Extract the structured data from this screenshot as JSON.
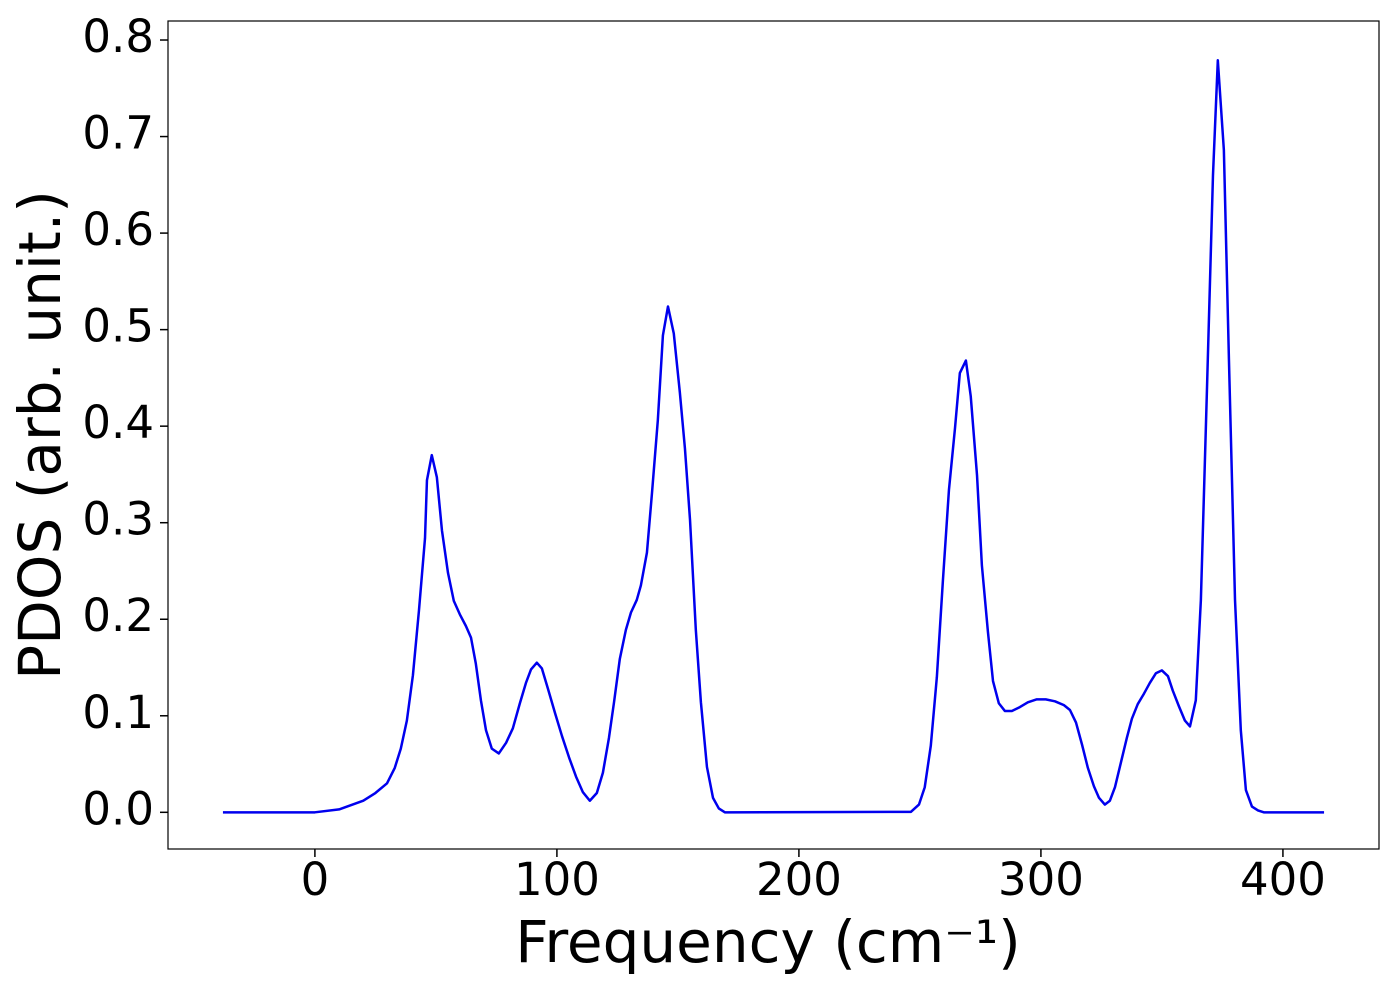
{
  "chart_data": {
    "type": "line",
    "x_label": "Frequency (cm⁻¹)",
    "y_label": "PDOS (arb. unit.)",
    "color": "#0000ee",
    "x": [
      -38,
      0,
      10,
      20,
      25,
      29.8,
      33,
      35.5,
      38,
      40.5,
      43,
      45.5,
      46.3,
      48.3,
      50.4,
      52.5,
      55,
      57.4,
      59.9,
      62.4,
      64.5,
      66.5,
      68.6,
      70.7,
      73.1,
      76,
      79,
      81.8,
      84.7,
      87.2,
      89.3,
      91.7,
      93.8,
      96.3,
      99.2,
      102.1,
      105,
      107.9,
      110.7,
      113.6,
      116.5,
      119,
      121.5,
      123.6,
      126,
      128.5,
      130.6,
      133,
      134.7,
      137.2,
      139.3,
      141.7,
      143.8,
      145.9,
      148.3,
      150.8,
      152.9,
      155,
      157.4,
      159.5,
      162,
      164.5,
      166.9,
      169.4,
      246.3,
      249.6,
      252,
      254.5,
      257,
      259.5,
      262,
      264.5,
      266.5,
      269,
      271,
      273.6,
      275.6,
      278.1,
      280.2,
      282.6,
      285.1,
      288,
      291.3,
      294.6,
      298.3,
      302,
      305.8,
      309.5,
      312,
      314.5,
      317,
      319.4,
      321.9,
      324,
      326.4,
      328.5,
      330.6,
      333,
      335.5,
      337.6,
      340,
      342.6,
      345,
      347.5,
      350,
      352.5,
      354.5,
      357,
      359.5,
      361.6,
      364,
      366.1,
      368.6,
      371.1,
      373.1,
      375.6,
      377.7,
      380.2,
      382.6,
      384.7,
      387.2,
      389.7,
      392.1,
      417
    ],
    "values": [
      0,
      0,
      0.003,
      0.012,
      0.02,
      0.03,
      0.046,
      0.066,
      0.095,
      0.142,
      0.209,
      0.284,
      0.344,
      0.37,
      0.347,
      0.292,
      0.248,
      0.219,
      0.205,
      0.193,
      0.181,
      0.154,
      0.116,
      0.085,
      0.066,
      0.061,
      0.072,
      0.087,
      0.113,
      0.134,
      0.148,
      0.155,
      0.149,
      0.128,
      0.103,
      0.079,
      0.057,
      0.037,
      0.021,
      0.012,
      0.02,
      0.041,
      0.077,
      0.114,
      0.159,
      0.189,
      0.207,
      0.22,
      0.235,
      0.269,
      0.331,
      0.406,
      0.494,
      0.524,
      0.496,
      0.435,
      0.377,
      0.303,
      0.189,
      0.114,
      0.047,
      0.015,
      0.004,
      0,
      0.0005,
      0.008,
      0.026,
      0.069,
      0.14,
      0.24,
      0.334,
      0.398,
      0.455,
      0.468,
      0.431,
      0.349,
      0.256,
      0.187,
      0.136,
      0.113,
      0.105,
      0.105,
      0.109,
      0.114,
      0.117,
      0.117,
      0.115,
      0.111,
      0.106,
      0.093,
      0.07,
      0.046,
      0.027,
      0.015,
      0.008,
      0.012,
      0.026,
      0.051,
      0.077,
      0.097,
      0.112,
      0.123,
      0.134,
      0.144,
      0.147,
      0.141,
      0.126,
      0.11,
      0.095,
      0.089,
      0.116,
      0.22,
      0.437,
      0.66,
      0.779,
      0.686,
      0.468,
      0.22,
      0.085,
      0.023,
      0.006,
      0.002,
      0,
      0
    ],
    "xlim": [
      -60.7,
      439.7
    ],
    "ylim": [
      -0.038,
      0.8197
    ],
    "xticks": [
      0,
      100,
      200,
      300,
      400
    ],
    "yticks": [
      {
        "value": 0,
        "label": "0.0"
      },
      {
        "value": 0.1,
        "label": "0.1"
      },
      {
        "value": 0.2,
        "label": "0.2"
      },
      {
        "value": 0.3,
        "label": "0.3"
      },
      {
        "value": 0.4,
        "label": "0.4"
      },
      {
        "value": 0.5,
        "label": "0.5"
      },
      {
        "value": 0.6,
        "label": "0.6"
      },
      {
        "value": 0.7,
        "label": "0.7"
      },
      {
        "value": 0.8,
        "label": "0.8"
      }
    ],
    "grid": false
  }
}
